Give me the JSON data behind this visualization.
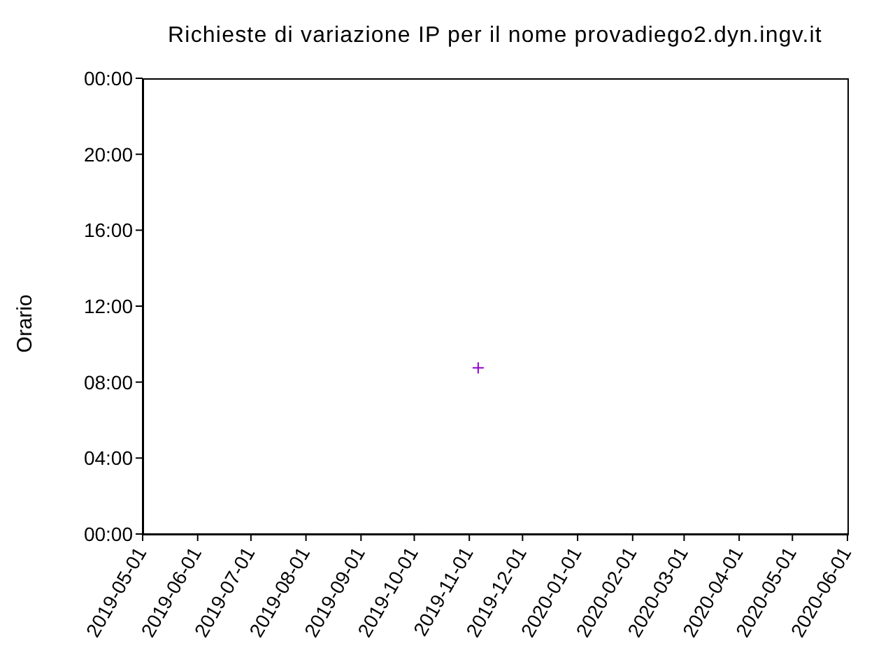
{
  "chart_data": {
    "type": "scatter",
    "title": "Richieste di variazione IP per il nome provadiego2.dyn.ingv.it",
    "ylabel": "Orario",
    "x": [
      "2019-11-06"
    ],
    "series": [
      {
        "color": "#9400d3",
        "values": [
          8.75
        ]
      }
    ],
    "marker": "cross",
    "xlim": [
      "2019-05-01",
      "2020-06-01"
    ],
    "xticks": [
      "2019-05-01",
      "2019-06-01",
      "2019-07-01",
      "2019-08-01",
      "2019-09-01",
      "2019-10-01",
      "2019-11-01",
      "2019-12-01",
      "2020-01-01",
      "2020-02-01",
      "2020-03-01",
      "2020-04-01",
      "2020-05-01",
      "2020-06-01"
    ],
    "ylim": [
      0,
      24
    ],
    "yticks": [
      {
        "value": 0,
        "label": "00:00"
      },
      {
        "value": 4,
        "label": "04:00"
      },
      {
        "value": 8,
        "label": "08:00"
      },
      {
        "value": 12,
        "label": "12:00"
      },
      {
        "value": 16,
        "label": "16:00"
      },
      {
        "value": 20,
        "label": "20:00"
      },
      {
        "value": 24,
        "label": "00:00"
      }
    ]
  }
}
